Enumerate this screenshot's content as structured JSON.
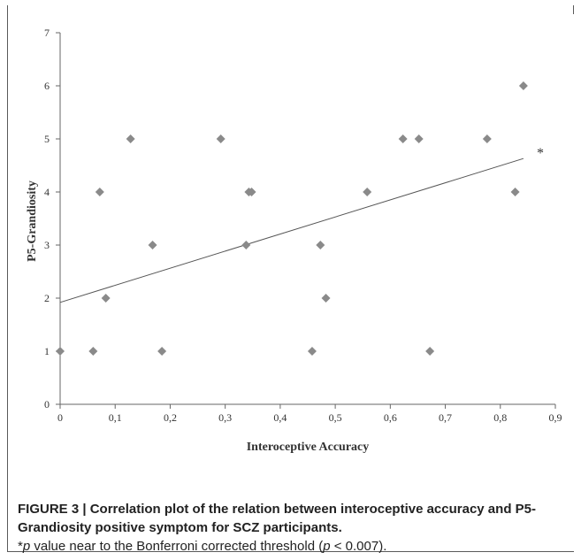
{
  "chart_data": {
    "type": "scatter",
    "xlabel": "Interoceptive Accuracy",
    "ylabel": "P5-Grandiosity",
    "xlim": [
      0,
      0.9
    ],
    "ylim": [
      0,
      7
    ],
    "x_ticks": [
      "0",
      "0,1",
      "0,2",
      "0,3",
      "0,4",
      "0,5",
      "0,6",
      "0,7",
      "0,8",
      "0,9"
    ],
    "y_ticks": [
      "0",
      "1",
      "2",
      "3",
      "4",
      "5",
      "6",
      "7"
    ],
    "grid": false,
    "marker_color": "#8a8a8a",
    "points": [
      {
        "x": 0.0,
        "y": 1
      },
      {
        "x": 0.06,
        "y": 1
      },
      {
        "x": 0.072,
        "y": 4
      },
      {
        "x": 0.083,
        "y": 2
      },
      {
        "x": 0.128,
        "y": 5
      },
      {
        "x": 0.168,
        "y": 3
      },
      {
        "x": 0.185,
        "y": 1
      },
      {
        "x": 0.292,
        "y": 5
      },
      {
        "x": 0.338,
        "y": 3
      },
      {
        "x": 0.343,
        "y": 4
      },
      {
        "x": 0.348,
        "y": 4
      },
      {
        "x": 0.458,
        "y": 1
      },
      {
        "x": 0.473,
        "y": 3
      },
      {
        "x": 0.483,
        "y": 2
      },
      {
        "x": 0.558,
        "y": 4
      },
      {
        "x": 0.623,
        "y": 5
      },
      {
        "x": 0.652,
        "y": 5
      },
      {
        "x": 0.672,
        "y": 1
      },
      {
        "x": 0.776,
        "y": 5
      },
      {
        "x": 0.827,
        "y": 4
      },
      {
        "x": 0.842,
        "y": 6
      }
    ],
    "trendline": {
      "x": [
        0.0,
        0.842
      ],
      "y": [
        1.92,
        4.63
      ]
    },
    "annotation": "*"
  },
  "caption": {
    "bold": "FIGURE 3 | Correlation plot of the relation between interoceptive accuracy and P5-Grandiosity positive symptom for SCZ participants.",
    "note_star": "*",
    "note_p": "p",
    "note_text": " value near to the Bonferroni corrected threshold (",
    "note_p2": "p",
    "note_text2": " < 0.007)."
  }
}
